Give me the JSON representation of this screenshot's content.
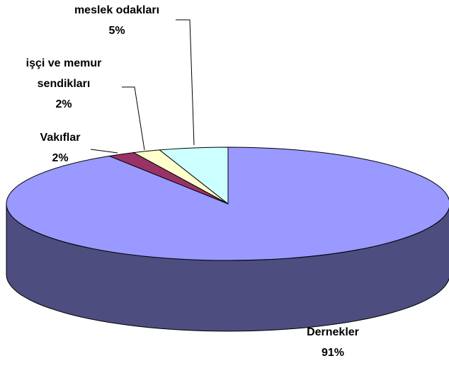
{
  "chart_data": {
    "type": "pie",
    "categories": [
      "Dernekler",
      "Vakıflar",
      "işçi ve memur sendikları",
      "meslek odakları"
    ],
    "values": [
      91,
      2,
      2,
      5
    ],
    "value_labels": [
      "91%",
      "2%",
      "2%",
      "5%"
    ],
    "colors": [
      "#9999ff",
      "#993366",
      "#ffffcc",
      "#ccffff"
    ]
  }
}
